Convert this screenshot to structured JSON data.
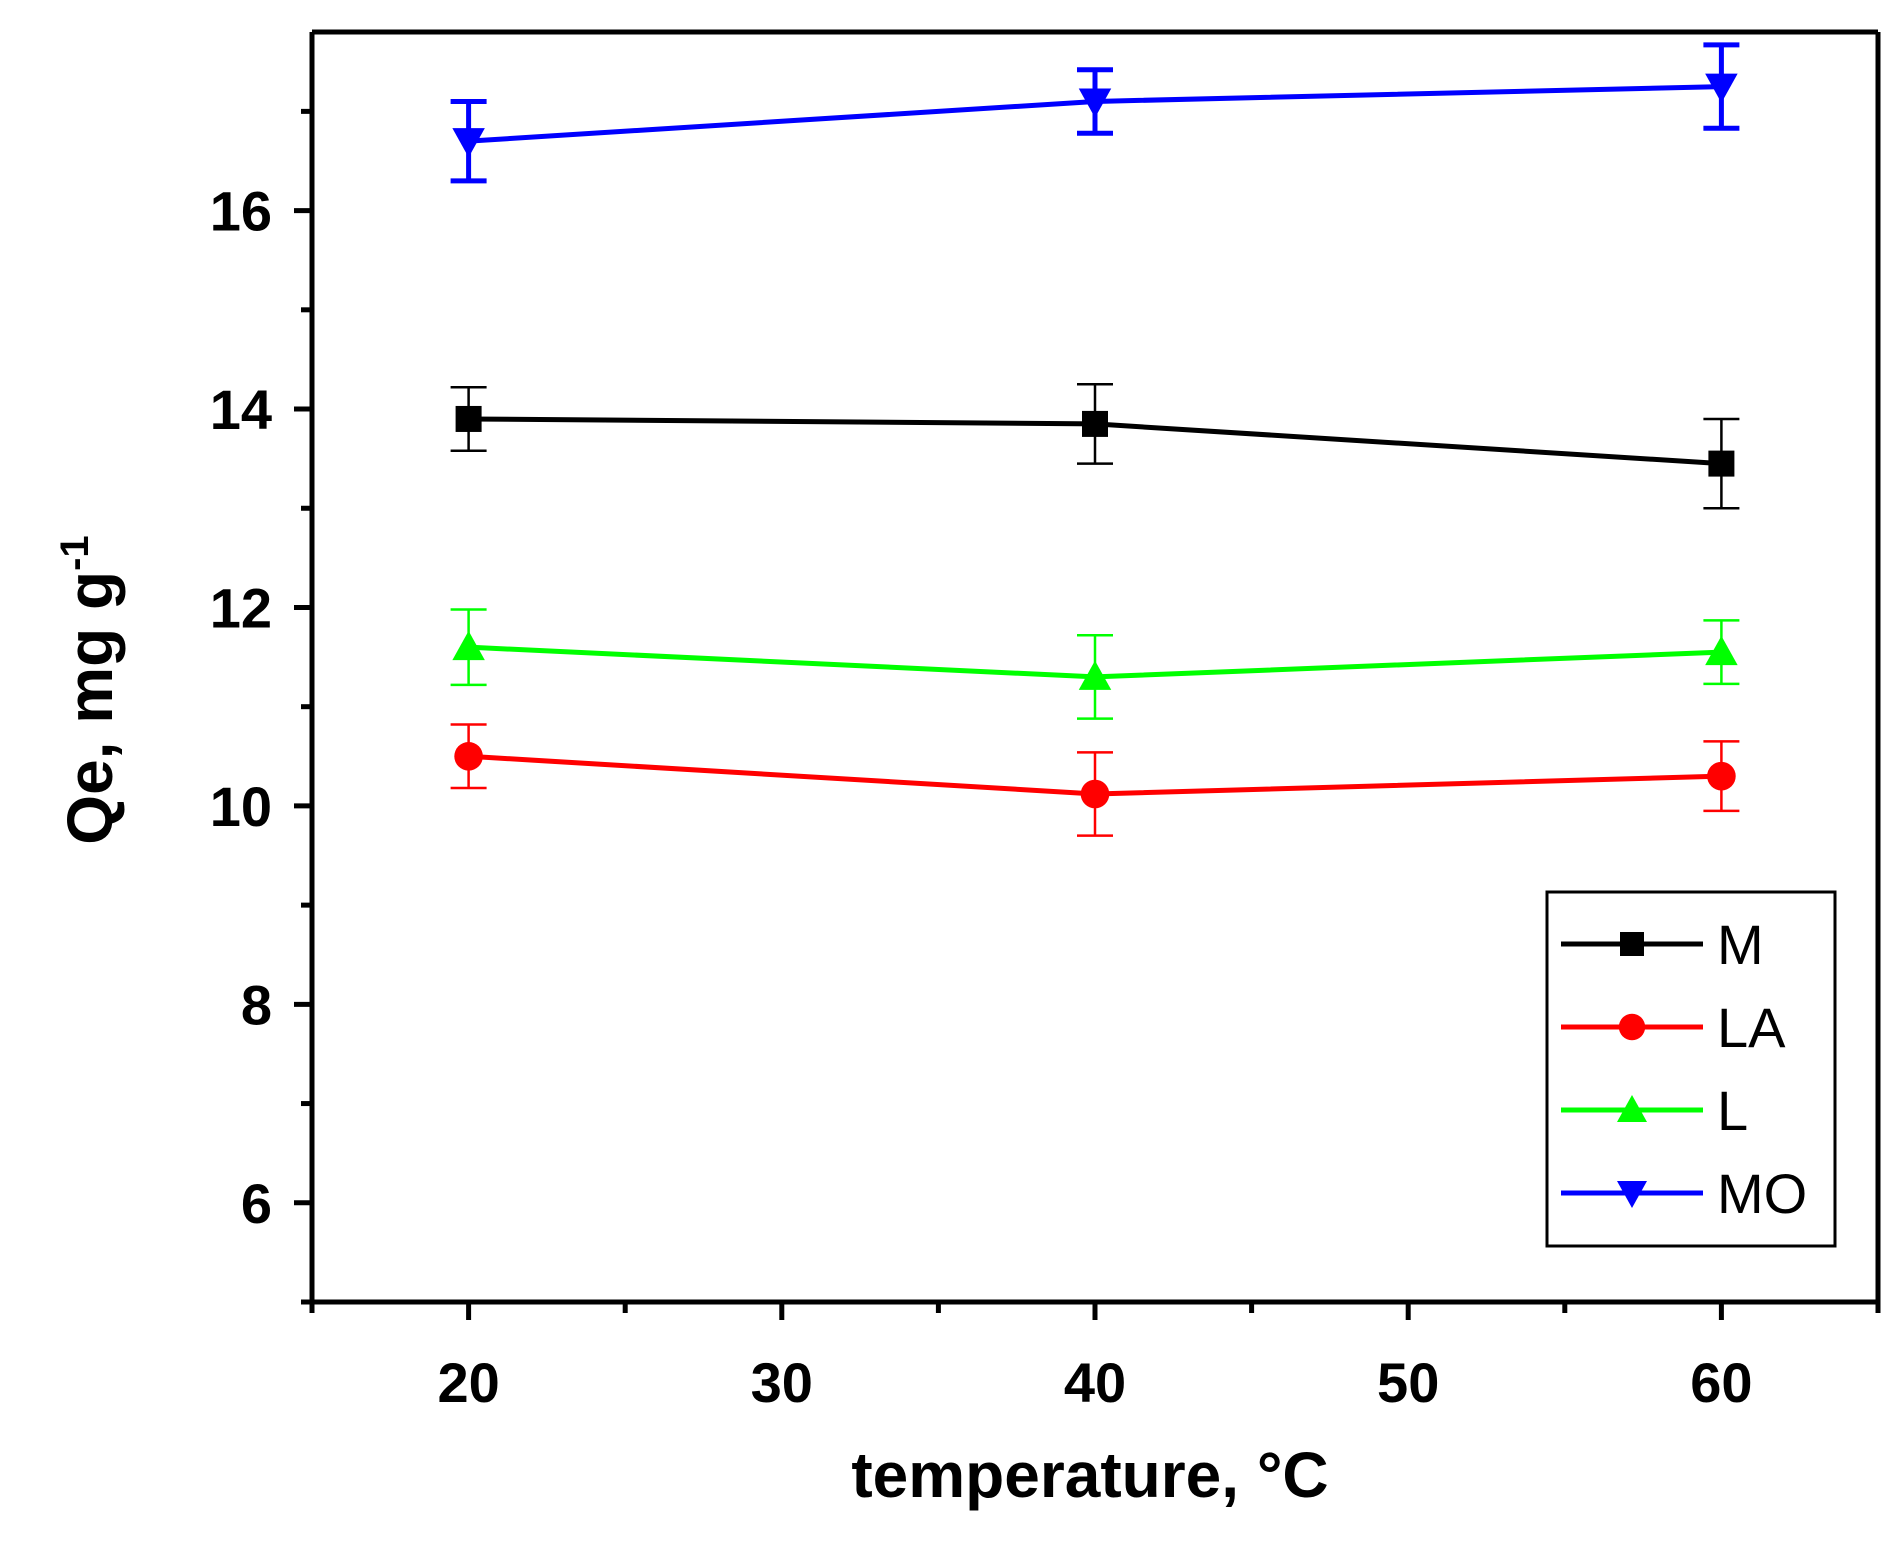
{
  "chart_data": {
    "type": "line",
    "xlabel": "temperature, °C",
    "ylabel_main": "Qe, mg g",
    "ylabel_sup": "-1",
    "xlim": [
      15,
      65
    ],
    "ylim": [
      5,
      17.8
    ],
    "xticks_major": [
      20,
      30,
      40,
      50,
      60
    ],
    "xticks_minor": [
      15,
      25,
      35,
      45,
      55,
      65
    ],
    "yticks_major": [
      6,
      8,
      10,
      12,
      14,
      16
    ],
    "yticks_minor": [
      5,
      7,
      9,
      11,
      13,
      15,
      17
    ],
    "x": [
      20,
      40,
      60
    ],
    "legend_position": "bottom-right",
    "series": [
      {
        "name": "M",
        "color": "#000000",
        "marker": "square",
        "values": [
          13.9,
          13.85,
          13.45
        ],
        "errors": [
          0.32,
          0.4,
          0.45
        ]
      },
      {
        "name": "LA",
        "color": "#ff0000",
        "marker": "circle",
        "values": [
          10.5,
          10.12,
          10.3
        ],
        "errors": [
          0.32,
          0.42,
          0.35
        ]
      },
      {
        "name": "L",
        "color": "#00ff00",
        "marker": "triangle-up",
        "values": [
          11.6,
          11.3,
          11.55
        ],
        "errors": [
          0.38,
          0.42,
          0.32
        ]
      },
      {
        "name": "MO",
        "color": "#0000ff",
        "marker": "triangle-down",
        "values": [
          16.7,
          17.1,
          17.25
        ],
        "errors": [
          0.4,
          0.32,
          0.42
        ]
      }
    ]
  }
}
